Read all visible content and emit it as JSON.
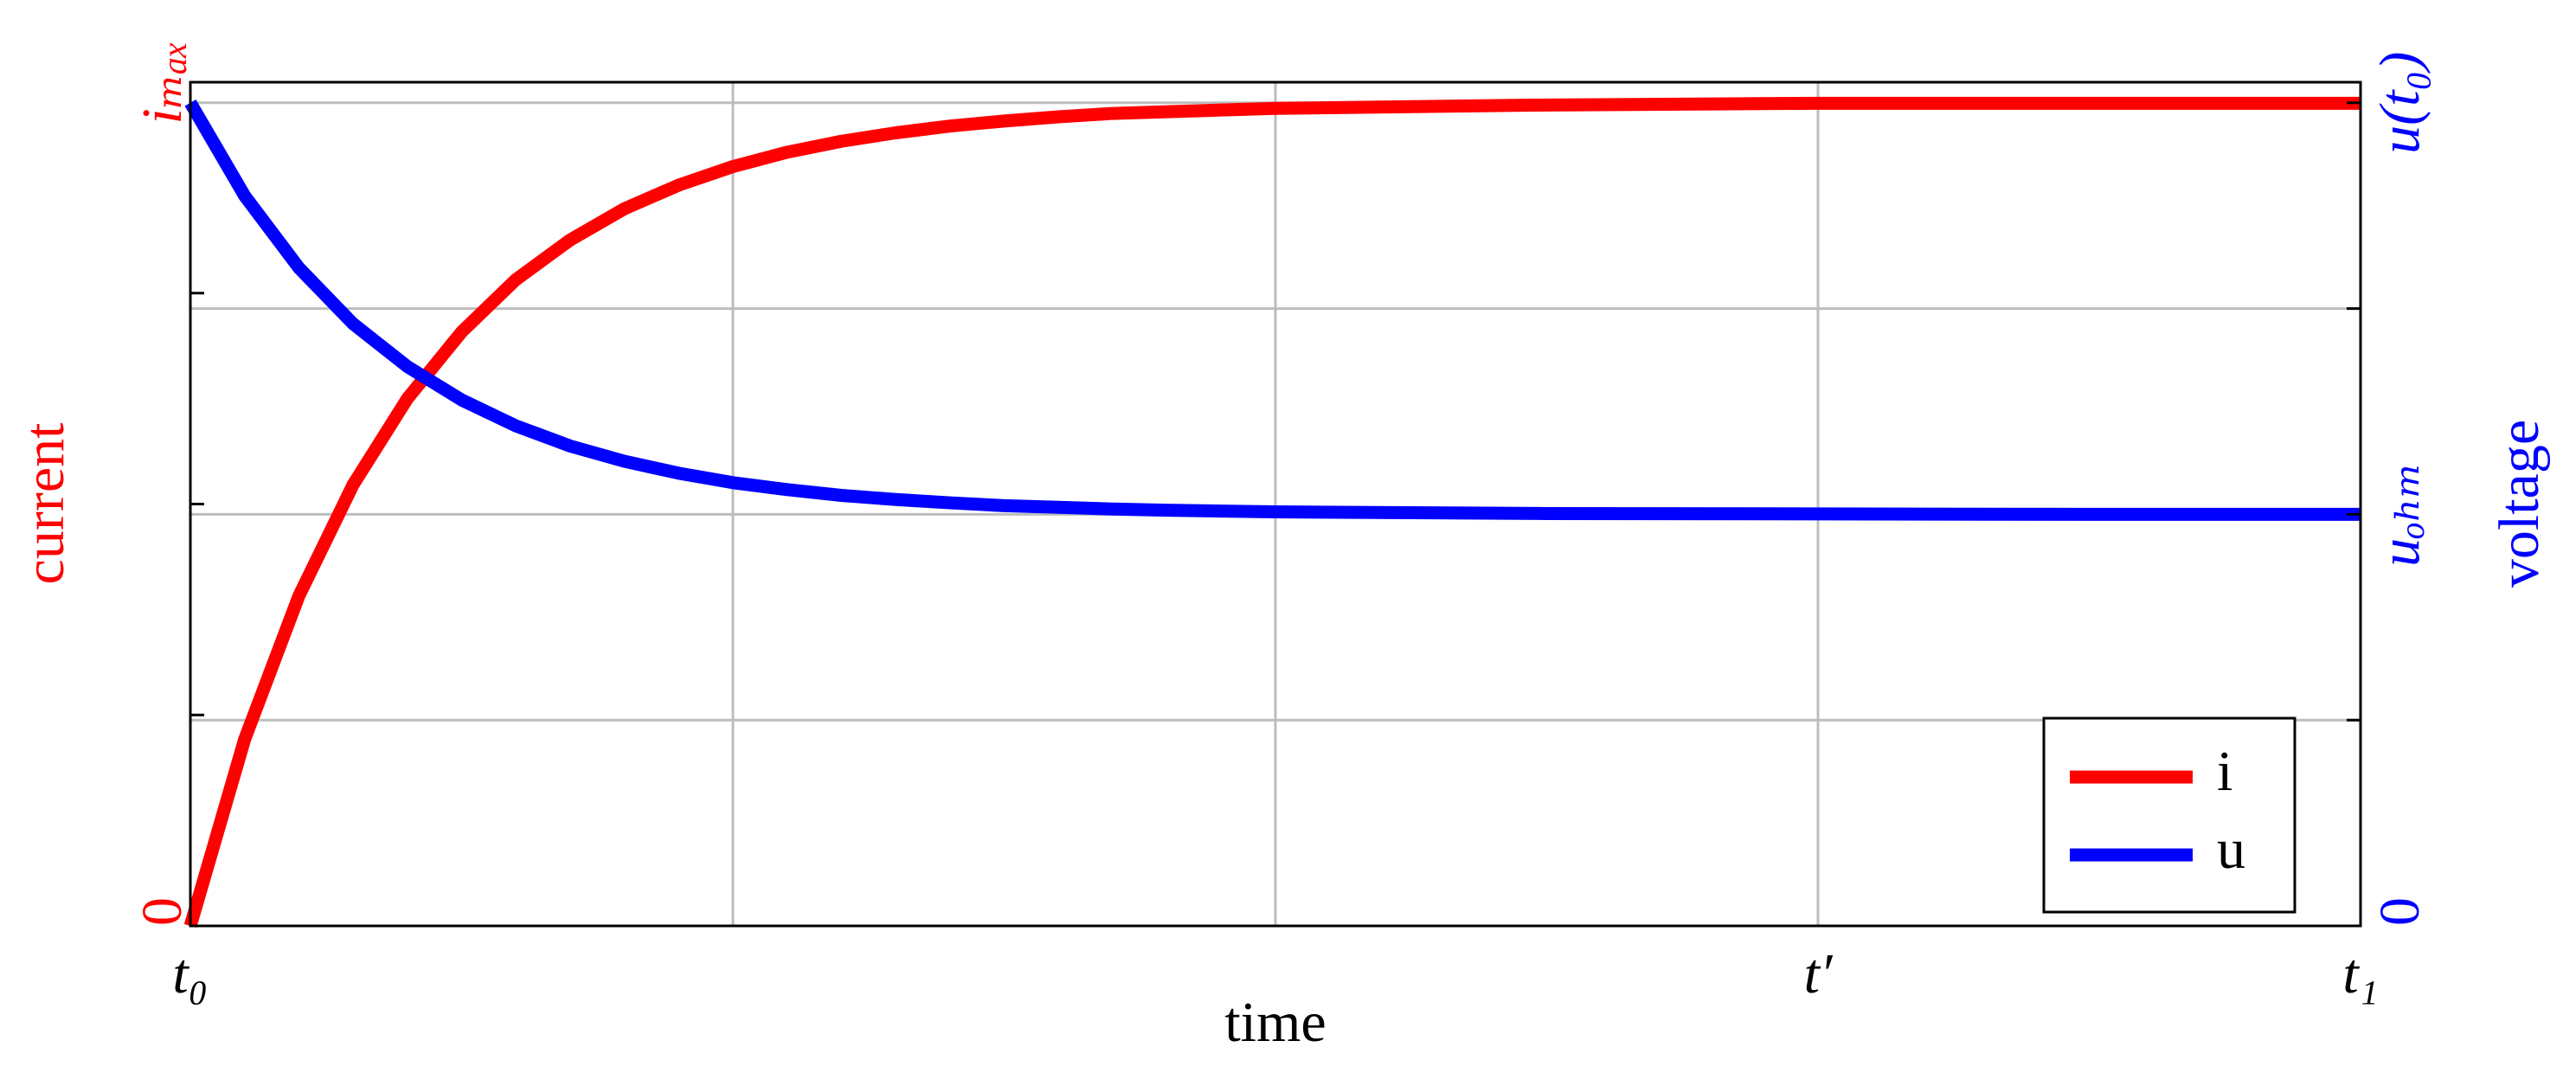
{
  "chart_data": {
    "type": "line",
    "x_label": "time",
    "y_label": "current",
    "y2_label": "voltage",
    "x": [
      0,
      0.1,
      0.2,
      0.3,
      0.4,
      0.5,
      0.6,
      0.7,
      0.8,
      0.9,
      1.0,
      1.1,
      1.2,
      1.3,
      1.4,
      1.5,
      1.6,
      1.7,
      1.8,
      1.9,
      2.0,
      2.5,
      3.0,
      3.5,
      4.0
    ],
    "series": [
      {
        "name": "i",
        "color": "#ff0000",
        "axis": "y",
        "values": [
          0,
          0.221,
          0.391,
          0.523,
          0.625,
          0.704,
          0.766,
          0.813,
          0.85,
          0.878,
          0.9,
          0.917,
          0.93,
          0.94,
          0.948,
          0.954,
          0.959,
          0.963,
          0.965,
          0.967,
          0.969,
          0.973,
          0.975,
          0.975,
          0.975
        ]
      },
      {
        "name": "u",
        "color": "#0000ff",
        "axis": "y2",
        "values": [
          2,
          1.774,
          1.599,
          1.463,
          1.359,
          1.278,
          1.215,
          1.166,
          1.129,
          1.1,
          1.077,
          1.06,
          1.046,
          1.036,
          1.028,
          1.021,
          1.017,
          1.013,
          1.01,
          1.008,
          1.006,
          1.002,
          1.001,
          1,
          1
        ]
      }
    ],
    "xlim": [
      0,
      4
    ],
    "xticks": [
      {
        "value": 0,
        "label": "t₀"
      },
      {
        "value": 1,
        "label": null
      },
      {
        "value": 2,
        "label": null
      },
      {
        "value": 3,
        "label": "t′"
      },
      {
        "value": 4,
        "label": "t₁"
      }
    ],
    "ylim": [
      0,
      1
    ],
    "yticks": [
      0,
      {
        "value": 0.25,
        "label": null
      },
      {
        "value": 0.5,
        "label": null
      },
      {
        "value": 0.75,
        "label": null
      },
      {
        "value": 1,
        "label": "iₘₐₓ"
      }
    ],
    "y2lim": [
      0,
      2.05
    ],
    "y2ticks": [
      0,
      {
        "value": 0.5,
        "label": null
      },
      {
        "value": 1,
        "label": "uₒₕₘ"
      },
      {
        "value": 1.5,
        "label": null
      },
      {
        "value": 2,
        "label": "u(t₀)"
      }
    ],
    "y_color": "#ff0000",
    "y2_color": "#0000ff",
    "grid": true,
    "legend": "lower right"
  }
}
